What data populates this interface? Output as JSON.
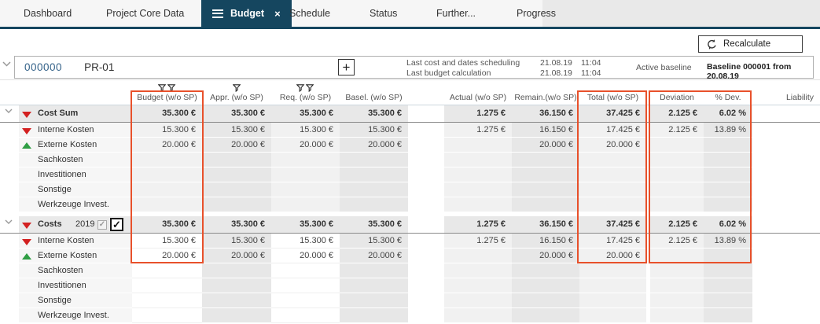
{
  "tabs": [
    {
      "label": "Dashboard",
      "active": false
    },
    {
      "label": "Project Core Data",
      "active": false
    },
    {
      "label": "Budget",
      "active": true,
      "has_menu_icon": true,
      "closable": true,
      "close_glyph": "×"
    },
    {
      "label": "Schedule",
      "active": false
    },
    {
      "label": "Status",
      "active": false
    },
    {
      "label": "Further...",
      "active": false
    },
    {
      "label": "Progress",
      "active": false
    }
  ],
  "toolbar": {
    "recalculate_label": "Recalculate"
  },
  "project_header": {
    "number": "000000",
    "code": "PR-01",
    "plus_glyph": "+",
    "info": [
      {
        "label": "Last cost and dates scheduling",
        "date": "21.08.19",
        "time": "11:04"
      },
      {
        "label": "Last budget calculation",
        "date": "21.08.19",
        "time": "11:04"
      }
    ],
    "active_baseline_label": "Active baseline",
    "baseline_value": "Baseline 000001 from 20.08.19"
  },
  "table": {
    "columns": [
      {
        "key": "budget",
        "label": "Budget (w/o SP)",
        "filter_count": 2
      },
      {
        "key": "appr",
        "label": "Appr. (w/o SP)",
        "filter_count": 1
      },
      {
        "key": "req",
        "label": "Req. (w/o SP)",
        "filter_count": 2
      },
      {
        "key": "basel",
        "label": "Basel. (w/o SP)",
        "filter_count": 0
      },
      {
        "key": "actual",
        "label": "Actual (w/o SP)",
        "filter_count": 0
      },
      {
        "key": "remain",
        "label": "Remain.(w/o SP)",
        "filter_count": 0
      },
      {
        "key": "total",
        "label": "Total (w/o SP)",
        "filter_count": 0
      },
      {
        "key": "deviation",
        "label": "Deviation",
        "filter_count": 0
      },
      {
        "key": "pdev",
        "label": "% Dev.",
        "filter_count": 0
      },
      {
        "key": "liability",
        "label": "Liability",
        "filter_count": 0
      }
    ],
    "groups": [
      {
        "label": "Cost Sum",
        "indicator": "red-down",
        "year": null,
        "cells": {
          "budget": "35.300 €",
          "appr": "35.300 €",
          "req": "35.300 €",
          "basel": "35.300 €",
          "actual": "1.275 €",
          "remain": "36.150 €",
          "total": "37.425 €",
          "deviation": "2.125 €",
          "pdev": "6.02 %",
          "liability": ""
        },
        "rows": [
          {
            "label": "Interne Kosten",
            "indicator": "red-down",
            "cells": {
              "budget": "15.300 €",
              "appr": "15.300 €",
              "req": "15.300 €",
              "basel": "15.300 €",
              "actual": "1.275 €",
              "remain": "16.150 €",
              "total": "17.425 €",
              "deviation": "2.125 €",
              "pdev": "13.89 %",
              "liability": ""
            }
          },
          {
            "label": "Externe Kosten",
            "indicator": "green-up",
            "cells": {
              "budget": "20.000 €",
              "appr": "20.000 €",
              "req": "20.000 €",
              "basel": "20.000 €",
              "actual": "",
              "remain": "20.000 €",
              "total": "20.000 €",
              "deviation": "",
              "pdev": "",
              "liability": ""
            }
          },
          {
            "label": "Sachkosten",
            "indicator": null,
            "cells": {}
          },
          {
            "label": "Investitionen",
            "indicator": null,
            "cells": {}
          },
          {
            "label": "Sonstige",
            "indicator": null,
            "cells": {}
          },
          {
            "label": "Werkzeuge Invest.",
            "indicator": null,
            "cells": {}
          }
        ]
      },
      {
        "label": "Costs",
        "indicator": "red-down",
        "year": "2019",
        "checkboxes": [
          {
            "checked": true,
            "disabled": true,
            "glyph": "✓"
          },
          {
            "checked": true,
            "disabled": false,
            "glyph": "✓"
          }
        ],
        "cells": {
          "budget": "35.300 €",
          "appr": "35.300 €",
          "req": "35.300 €",
          "basel": "35.300 €",
          "actual": "1.275 €",
          "remain": "36.150 €",
          "total": "37.425 €",
          "deviation": "2.125 €",
          "pdev": "6.02 %",
          "liability": ""
        },
        "rows": [
          {
            "label": "Interne Kosten",
            "indicator": "red-down",
            "cells": {
              "budget": "15.300 €",
              "appr": "15.300 €",
              "req": "15.300 €",
              "basel": "15.300 €",
              "actual": "1.275 €",
              "remain": "16.150 €",
              "total": "17.425 €",
              "deviation": "2.125 €",
              "pdev": "13.89 %",
              "liability": ""
            }
          },
          {
            "label": "Externe Kosten",
            "indicator": "green-up",
            "cells": {
              "budget": "20.000 €",
              "appr": "20.000 €",
              "req": "20.000 €",
              "basel": "20.000 €",
              "actual": "",
              "remain": "20.000 €",
              "total": "20.000 €",
              "deviation": "",
              "pdev": "",
              "liability": ""
            }
          },
          {
            "label": "Sachkosten",
            "indicator": null,
            "cells": {}
          },
          {
            "label": "Investitionen",
            "indicator": null,
            "cells": {}
          },
          {
            "label": "Sonstige",
            "indicator": null,
            "cells": {}
          },
          {
            "label": "Werkzeuge Invest.",
            "indicator": null,
            "cells": {}
          }
        ]
      }
    ]
  },
  "highlight_boxes": [
    {
      "target": "budget-column"
    },
    {
      "target": "total-column"
    },
    {
      "target": "deviation-and-pdev-columns"
    }
  ],
  "colors": {
    "navy": "#15465f",
    "highlight_orange": "#e8512b",
    "indicator_red": "#d32020",
    "indicator_green": "#2f9e44",
    "project_number_blue": "#35638a"
  }
}
